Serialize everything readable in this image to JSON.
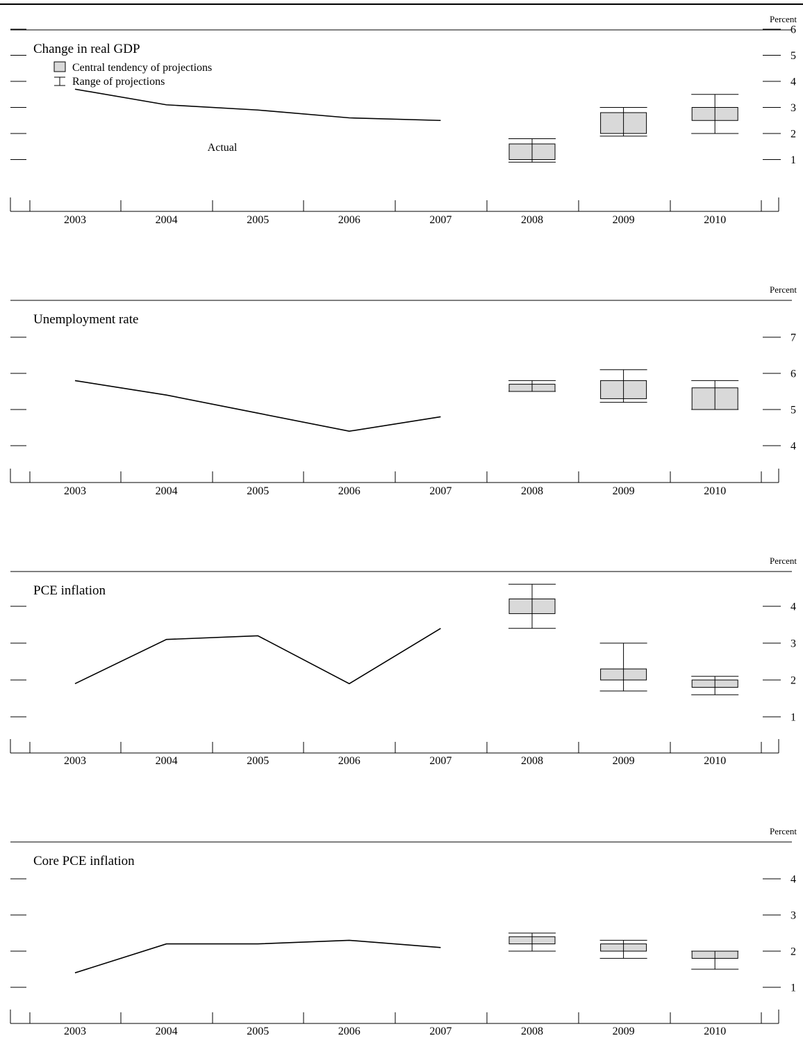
{
  "legend": {
    "central_tendency": "Central tendency of projections",
    "range": "Range of projections"
  },
  "colors": {
    "line": "#000000",
    "box_fill": "#d9d9d9",
    "box_stroke": "#000000"
  },
  "chart_data": [
    {
      "type": "line",
      "title": "Change in real GDP",
      "unit_label": "Percent",
      "annotation": "Actual",
      "categories": [
        "2003",
        "2004",
        "2005",
        "2006",
        "2007",
        "2008",
        "2009",
        "2010"
      ],
      "ylim": [
        0,
        7
      ],
      "yticks": [
        1,
        2,
        3,
        4,
        5,
        6
      ],
      "actual": [
        {
          "x": "2003",
          "y": 3.7
        },
        {
          "x": "2004",
          "y": 3.1
        },
        {
          "x": "2005",
          "y": 2.9
        },
        {
          "x": "2006",
          "y": 2.6
        },
        {
          "x": "2007",
          "y": 2.5
        }
      ],
      "projections": [
        {
          "x": "2008",
          "central": [
            1.0,
            1.6
          ],
          "range": [
            0.9,
            1.8
          ]
        },
        {
          "x": "2009",
          "central": [
            2.0,
            2.8
          ],
          "range": [
            1.9,
            3.0
          ]
        },
        {
          "x": "2010",
          "central": [
            2.5,
            3.0
          ],
          "range": [
            2.0,
            3.5
          ]
        }
      ]
    },
    {
      "type": "line",
      "title": "Unemployment rate",
      "unit_label": "Percent",
      "categories": [
        "2003",
        "2004",
        "2005",
        "2006",
        "2007",
        "2008",
        "2009",
        "2010"
      ],
      "ylim": [
        3.2,
        7.3
      ],
      "yticks": [
        4,
        5,
        6,
        7
      ],
      "actual": [
        {
          "x": "2003",
          "y": 5.8
        },
        {
          "x": "2004",
          "y": 5.4
        },
        {
          "x": "2005",
          "y": 4.9
        },
        {
          "x": "2006",
          "y": 4.4
        },
        {
          "x": "2007",
          "y": 4.8
        }
      ],
      "projections": [
        {
          "x": "2008",
          "central": [
            5.5,
            5.7
          ],
          "range": [
            5.5,
            5.8
          ]
        },
        {
          "x": "2009",
          "central": [
            5.3,
            5.8
          ],
          "range": [
            5.2,
            6.1
          ]
        },
        {
          "x": "2010",
          "central": [
            5.0,
            5.6
          ],
          "range": [
            5.0,
            5.8
          ]
        }
      ]
    },
    {
      "type": "line",
      "title": "PCE inflation",
      "unit_label": "Percent",
      "categories": [
        "2003",
        "2004",
        "2005",
        "2006",
        "2007",
        "2008",
        "2009",
        "2010"
      ],
      "ylim": [
        0.2,
        4.6
      ],
      "yticks": [
        1,
        2,
        3,
        4
      ],
      "actual": [
        {
          "x": "2003",
          "y": 1.9
        },
        {
          "x": "2004",
          "y": 3.1
        },
        {
          "x": "2005",
          "y": 3.2
        },
        {
          "x": "2006",
          "y": 1.9
        },
        {
          "x": "2007",
          "y": 3.4
        }
      ],
      "projections": [
        {
          "x": "2008",
          "central": [
            3.8,
            4.2
          ],
          "range": [
            3.4,
            4.6
          ]
        },
        {
          "x": "2009",
          "central": [
            2.0,
            2.3
          ],
          "range": [
            1.7,
            3.0
          ]
        },
        {
          "x": "2010",
          "central": [
            1.8,
            2.0
          ],
          "range": [
            1.6,
            2.1
          ]
        }
      ]
    },
    {
      "type": "line",
      "title": "Core PCE inflation",
      "unit_label": "Percent",
      "categories": [
        "2003",
        "2004",
        "2005",
        "2006",
        "2007",
        "2008",
        "2009",
        "2010"
      ],
      "ylim": [
        0.2,
        4.6
      ],
      "yticks": [
        1,
        2,
        3,
        4
      ],
      "actual": [
        {
          "x": "2003",
          "y": 1.4
        },
        {
          "x": "2004",
          "y": 2.2
        },
        {
          "x": "2005",
          "y": 2.2
        },
        {
          "x": "2006",
          "y": 2.3
        },
        {
          "x": "2007",
          "y": 2.1
        }
      ],
      "projections": [
        {
          "x": "2008",
          "central": [
            2.2,
            2.4
          ],
          "range": [
            2.0,
            2.5
          ]
        },
        {
          "x": "2009",
          "central": [
            2.0,
            2.2
          ],
          "range": [
            1.8,
            2.3
          ]
        },
        {
          "x": "2010",
          "central": [
            1.8,
            2.0
          ],
          "range": [
            1.5,
            2.0
          ]
        }
      ]
    }
  ]
}
